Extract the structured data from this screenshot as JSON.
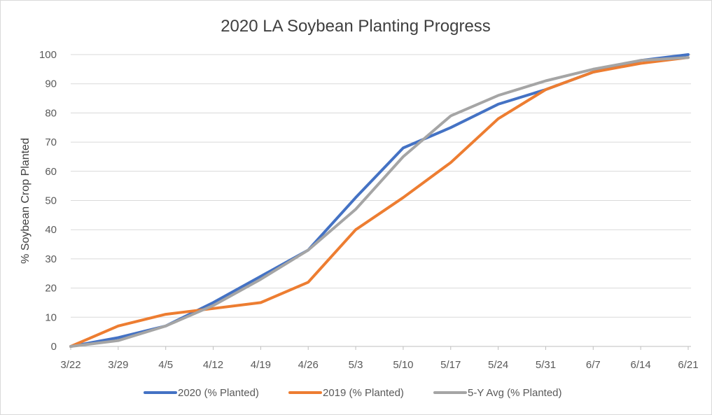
{
  "chart_data": {
    "type": "line",
    "title": "2020 LA Soybean Planting Progress",
    "xlabel": "",
    "ylabel": "% Soybean Crop Planted",
    "categories": [
      "3/22",
      "3/29",
      "4/5",
      "4/12",
      "4/19",
      "4/26",
      "5/3",
      "5/10",
      "5/17",
      "5/24",
      "5/31",
      "6/7",
      "6/14",
      "6/21"
    ],
    "ylim": [
      0,
      100
    ],
    "yticks": [
      0,
      10,
      20,
      30,
      40,
      50,
      60,
      70,
      80,
      90,
      100
    ],
    "grid": true,
    "legend": "bottom",
    "series": [
      {
        "name": "2020 (% Planted)",
        "color": "#4472c4",
        "values": [
          0,
          3,
          7,
          15,
          24,
          33,
          51,
          68,
          75,
          83,
          88,
          94,
          98,
          100
        ]
      },
      {
        "name": "2019 (% Planted)",
        "color": "#ed7d31",
        "values": [
          0,
          7,
          11,
          13,
          15,
          22,
          40,
          51,
          63,
          78,
          88,
          94,
          97,
          99
        ]
      },
      {
        "name": "5-Y Avg (% Planted)",
        "color": "#a5a5a5",
        "values": [
          0,
          2,
          7,
          14,
          23,
          33,
          47,
          65,
          79,
          86,
          91,
          95,
          98,
          99
        ]
      }
    ]
  }
}
